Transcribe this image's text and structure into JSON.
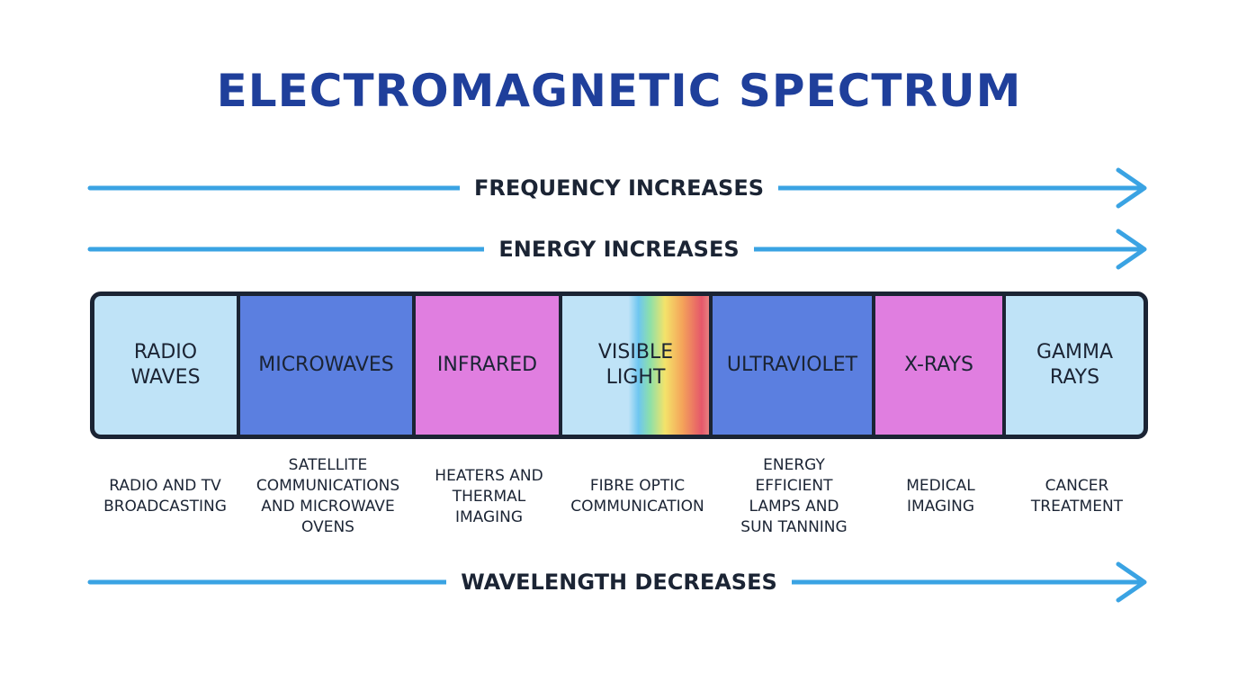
{
  "title": "ELECTROMAGNETIC SPECTRUM",
  "arrows": [
    "FREQUENCY INCREASES",
    "ENERGY INCREASES",
    "WAVELENGTH DECREASES"
  ],
  "bands": [
    {
      "name": [
        "RADIO",
        "WAVES"
      ],
      "use": [
        "RADIO AND TV",
        "BROADCASTING"
      ]
    },
    {
      "name": [
        "MICROWAVES"
      ],
      "use": [
        "SATELLITE",
        "COMMUNICATIONS",
        "AND MICROWAVE",
        "OVENS"
      ]
    },
    {
      "name": [
        "INFRARED"
      ],
      "use": [
        "HEATERS AND",
        "THERMAL",
        "IMAGING"
      ]
    },
    {
      "name": [
        "VISIBLE",
        "LIGHT"
      ],
      "use": [
        "FIBRE OPTIC",
        "COMMUNICATION"
      ]
    },
    {
      "name": [
        "ULTRAVIOLET"
      ],
      "use": [
        "ENERGY",
        "EFFICIENT",
        "LAMPS AND",
        "SUN TANNING"
      ]
    },
    {
      "name": [
        "X-RAYS"
      ],
      "use": [
        "MEDICAL",
        "IMAGING"
      ]
    },
    {
      "name": [
        "GAMMA",
        "RAYS"
      ],
      "use": [
        "CANCER",
        "TREATMENT"
      ]
    }
  ]
}
